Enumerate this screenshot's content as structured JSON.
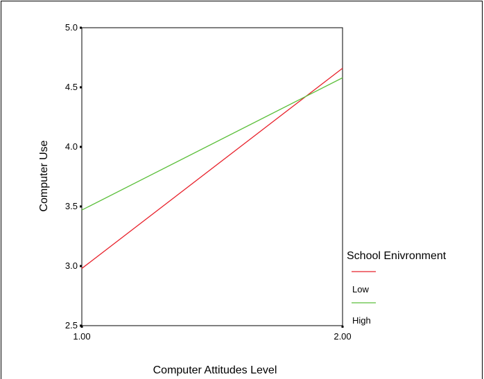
{
  "chart_data": {
    "type": "line",
    "title": "",
    "xlabel": "Computer Attitudes Level",
    "ylabel": "Computer Use",
    "xlim": [
      1.0,
      2.0
    ],
    "ylim": [
      2.5,
      5.0
    ],
    "xticks": [
      1.0,
      2.0
    ],
    "xtick_labels": [
      "1.00",
      "2.00"
    ],
    "yticks": [
      2.5,
      3.0,
      3.5,
      4.0,
      4.5,
      5.0
    ],
    "ytick_labels": [
      "2.5",
      "3.0",
      "3.5",
      "4.0",
      "4.5",
      "5.0"
    ],
    "grid": false,
    "legend": {
      "title": "School Enivronment",
      "position": "right"
    },
    "series": [
      {
        "name": "Low",
        "color": "#e8202a",
        "x": [
          1.0,
          2.0
        ],
        "y": [
          2.98,
          4.66
        ]
      },
      {
        "name": "High",
        "color": "#5bbf3a",
        "x": [
          1.0,
          2.0
        ],
        "y": [
          3.47,
          4.58
        ]
      }
    ]
  }
}
